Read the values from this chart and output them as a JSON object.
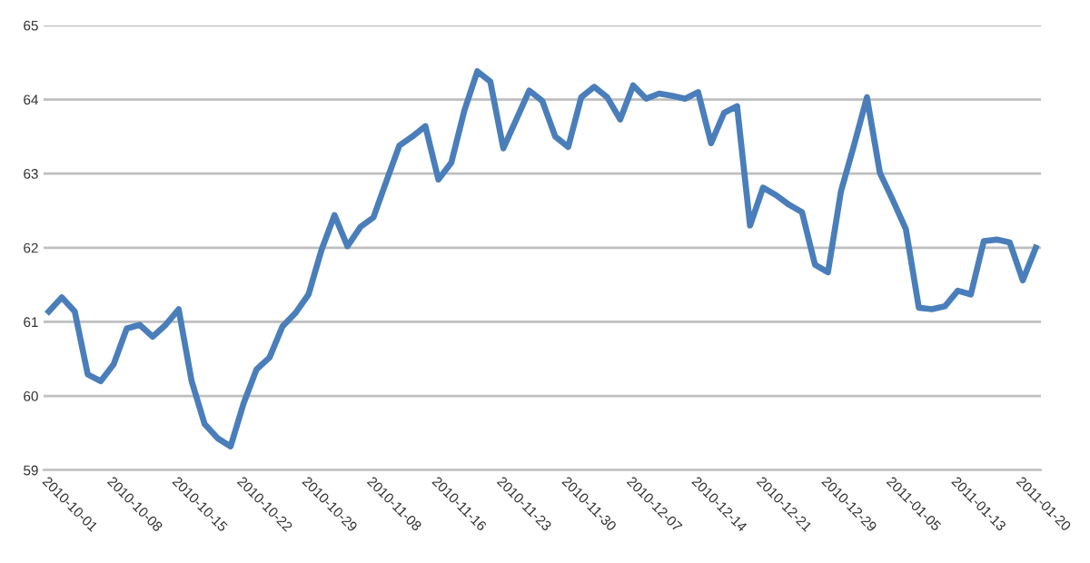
{
  "chart_data": {
    "type": "line",
    "categories": [
      "2010-10-01",
      null,
      null,
      null,
      null,
      "2010-10-08",
      null,
      null,
      null,
      null,
      "2010-10-15",
      null,
      null,
      null,
      null,
      "2010-10-22",
      null,
      null,
      null,
      null,
      "2010-10-29",
      null,
      null,
      null,
      null,
      "2010-11-08",
      null,
      null,
      null,
      null,
      "2010-11-16",
      null,
      null,
      null,
      null,
      "2010-11-23",
      null,
      null,
      null,
      null,
      "2010-11-30",
      null,
      null,
      null,
      null,
      "2010-12-07",
      null,
      null,
      null,
      null,
      "2010-12-14",
      null,
      null,
      null,
      null,
      "2010-12-21",
      null,
      null,
      null,
      null,
      "2010-12-29",
      null,
      null,
      null,
      null,
      "2011-01-05",
      null,
      null,
      null,
      null,
      "2011-01-13",
      null,
      null,
      null,
      null,
      "2011-01-20",
      null
    ],
    "series": [
      {
        "color": "#4a7ebb",
        "values": [
          61.14,
          61.33,
          61.14,
          60.29,
          60.2,
          60.43,
          60.91,
          60.96,
          60.8,
          60.96,
          61.17,
          60.2,
          59.62,
          59.43,
          59.32,
          59.9,
          60.36,
          60.52,
          60.94,
          61.12,
          61.37,
          61.97,
          62.44,
          62.02,
          62.28,
          62.41,
          62.9,
          63.38,
          63.5,
          63.64,
          62.92,
          63.15,
          63.85,
          64.38,
          64.24,
          63.34,
          63.73,
          64.12,
          63.98,
          63.5,
          63.36,
          64.03,
          64.17,
          64.03,
          63.73,
          64.19,
          64.01,
          64.08,
          64.05,
          64.01,
          64.1,
          63.41,
          63.82,
          63.91,
          62.3,
          62.81,
          62.71,
          62.58,
          62.48,
          61.77,
          61.67,
          62.76,
          63.38,
          64.03,
          63.01,
          62.64,
          62.25,
          61.19,
          61.17,
          61.21,
          61.42,
          61.37,
          62.09,
          62.11,
          62.07,
          61.56,
          62.0
        ]
      }
    ],
    "ylim": [
      59,
      65
    ],
    "yticks": [
      59,
      60,
      61,
      62,
      63,
      64,
      65
    ],
    "grid": "y",
    "line_style": "solid",
    "marker": "none"
  }
}
